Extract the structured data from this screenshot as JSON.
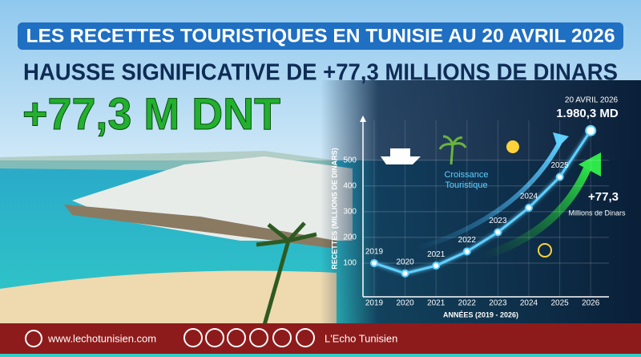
{
  "header": {
    "banner": "LES RECETTES TOURISTIQUES EN TUNISIE AU 20 AVRIL 2026",
    "headline": "HAUSSE SIGNIFICATIVE DE +77,3 MILLIONS DE DINARS",
    "big_figure": "+77,3 M DNT"
  },
  "chart_data": {
    "type": "line",
    "x_label": "ANNÉES (2019 - 2026)",
    "y_label": "RECETTES (MILLIONS DE DINARS)",
    "categories": [
      "2019",
      "2020",
      "2021",
      "2022",
      "2023",
      "2024",
      "2025",
      "2026"
    ],
    "series": [
      {
        "name": "Recettes",
        "color": "#5fd0ff",
        "values": [
          100,
          60,
          90,
          145,
          220,
          315,
          435,
          615
        ]
      }
    ],
    "ylim": [
      0,
      680
    ],
    "yticks": [
      100,
      200,
      300,
      400,
      500
    ],
    "annotations": {
      "growth": [
        "Croissance",
        "Touristique"
      ],
      "increase": "+77,3",
      "increase_unit": "Millions de Dinars",
      "date": "20 AVRIL 2026",
      "total": "1.980,3 MD"
    }
  },
  "footer": {
    "website": "www.lechotunisien.com",
    "brand": "L'Echo Tunisien"
  }
}
